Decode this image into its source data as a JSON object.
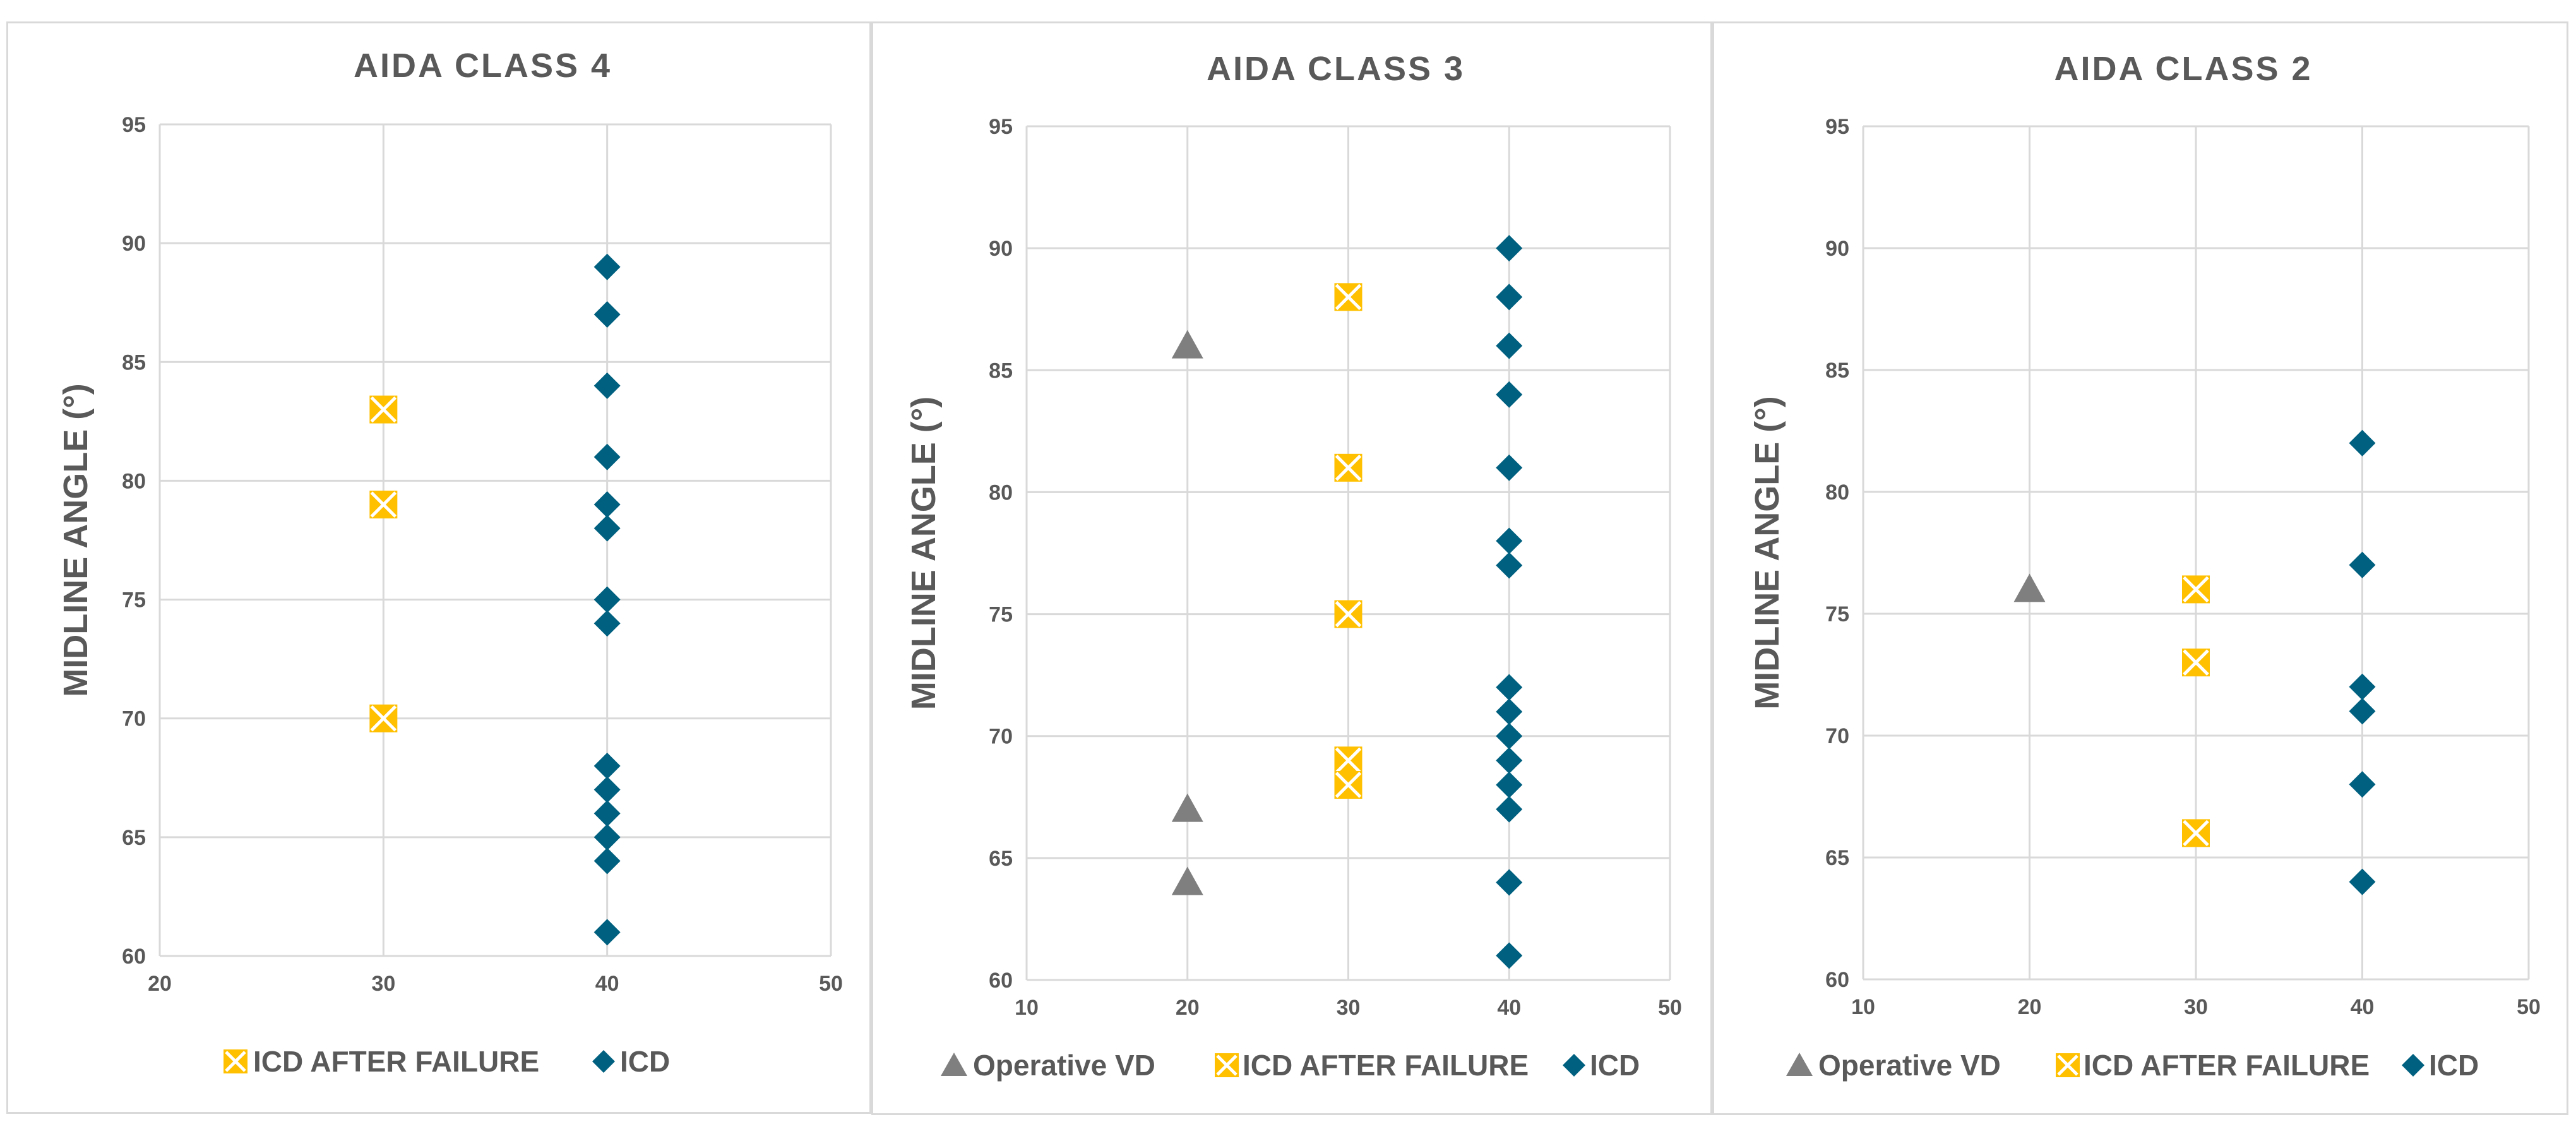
{
  "chart_data": [
    {
      "type": "scatter",
      "title": "AIDA CLASS 4",
      "xlabel": "",
      "ylabel": "MIDLINE ANGLE (°)",
      "xlim": [
        20,
        50
      ],
      "ylim": [
        60,
        95
      ],
      "xticks": [
        20,
        30,
        40,
        50
      ],
      "yticks": [
        60,
        65,
        70,
        75,
        80,
        85,
        90,
        95
      ],
      "grid": true,
      "legend_position": "bottom",
      "series": [
        {
          "name": "ICD AFTER FAILURE",
          "marker": "x-square",
          "color": "#FFC000",
          "points": [
            [
              30,
              83
            ],
            [
              30,
              79
            ],
            [
              30,
              70
            ]
          ]
        },
        {
          "name": "ICD",
          "marker": "diamond",
          "color": "#00607F",
          "points": [
            [
              40,
              89
            ],
            [
              40,
              87
            ],
            [
              40,
              84
            ],
            [
              40,
              81
            ],
            [
              40,
              79
            ],
            [
              40,
              78
            ],
            [
              40,
              75
            ],
            [
              40,
              74
            ],
            [
              40,
              68
            ],
            [
              40,
              67
            ],
            [
              40,
              66
            ],
            [
              40,
              65
            ],
            [
              40,
              64
            ],
            [
              40,
              61
            ]
          ]
        }
      ]
    },
    {
      "type": "scatter",
      "title": "AIDA CLASS 3",
      "xlabel": "",
      "ylabel": "MIDLINE ANGLE (°)",
      "xlim": [
        10,
        50
      ],
      "ylim": [
        60,
        95
      ],
      "xticks": [
        10,
        20,
        30,
        40,
        50
      ],
      "yticks": [
        60,
        65,
        70,
        75,
        80,
        85,
        90,
        95
      ],
      "grid": true,
      "legend_position": "bottom",
      "series": [
        {
          "name": "Operative VD",
          "marker": "triangle",
          "color": "#7F7F7F",
          "points": [
            [
              20,
              86
            ],
            [
              20,
              67
            ],
            [
              20,
              64
            ]
          ]
        },
        {
          "name": "ICD AFTER FAILURE",
          "marker": "x-square",
          "color": "#FFC000",
          "points": [
            [
              30,
              88
            ],
            [
              30,
              81
            ],
            [
              30,
              75
            ],
            [
              30,
              69
            ],
            [
              30,
              68
            ]
          ]
        },
        {
          "name": "ICD",
          "marker": "diamond",
          "color": "#00607F",
          "points": [
            [
              40,
              90
            ],
            [
              40,
              88
            ],
            [
              40,
              86
            ],
            [
              40,
              84
            ],
            [
              40,
              81
            ],
            [
              40,
              78
            ],
            [
              40,
              77
            ],
            [
              40,
              72
            ],
            [
              40,
              71
            ],
            [
              40,
              70
            ],
            [
              40,
              69
            ],
            [
              40,
              68
            ],
            [
              40,
              67
            ],
            [
              40,
              64
            ],
            [
              40,
              61
            ]
          ]
        }
      ]
    },
    {
      "type": "scatter",
      "title": "AIDA CLASS 2",
      "xlabel": "",
      "ylabel": "MIDLINE ANGLE (°)",
      "xlim": [
        10,
        50
      ],
      "ylim": [
        60,
        95
      ],
      "xticks": [
        10,
        20,
        30,
        40,
        50
      ],
      "yticks": [
        60,
        65,
        70,
        75,
        80,
        85,
        90,
        95
      ],
      "grid": true,
      "legend_position": "bottom",
      "series": [
        {
          "name": "Operative VD",
          "marker": "triangle",
          "color": "#7F7F7F",
          "points": [
            [
              20,
              76
            ]
          ]
        },
        {
          "name": "ICD AFTER FAILURE",
          "marker": "x-square",
          "color": "#FFC000",
          "points": [
            [
              30,
              76
            ],
            [
              30,
              73
            ],
            [
              30,
              66
            ]
          ]
        },
        {
          "name": "ICD",
          "marker": "diamond",
          "color": "#00607F",
          "points": [
            [
              40,
              82
            ],
            [
              40,
              77
            ],
            [
              40,
              72
            ],
            [
              40,
              71
            ],
            [
              40,
              68
            ],
            [
              40,
              64
            ]
          ]
        }
      ]
    }
  ]
}
